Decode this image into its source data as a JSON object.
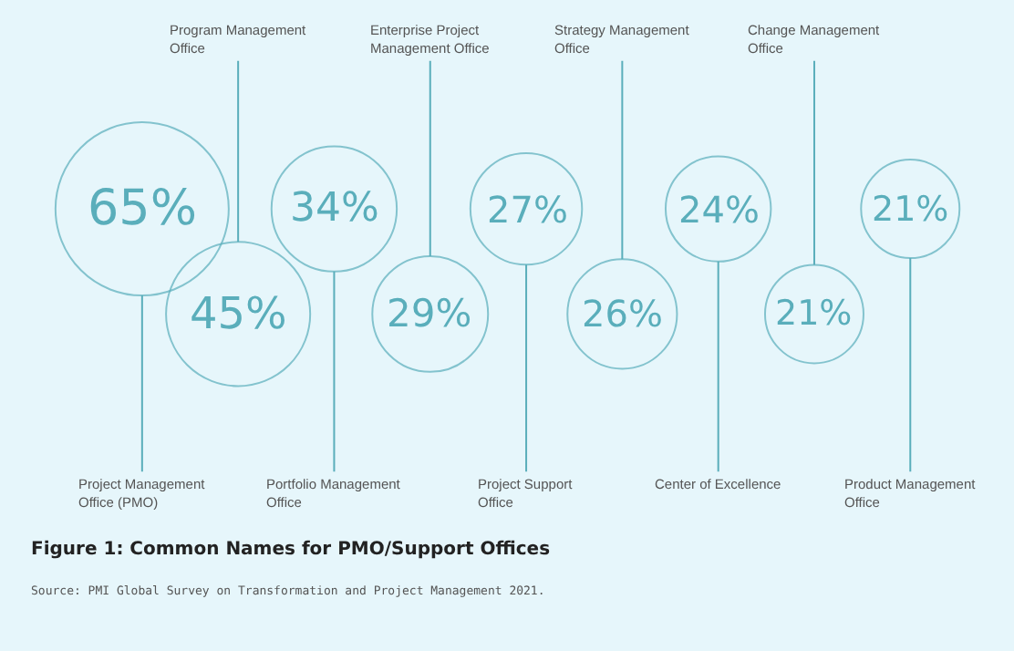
{
  "chart_data": {
    "type": "other",
    "title": "Figure 1: Common Names for PMO/Support Offices",
    "annotations": [
      "Source: PMI Global Survey on Transformation and Project Management 2021."
    ],
    "categories": [
      "Project Management Office (PMO)",
      "Program Management Office",
      "Portfolio Management Office",
      "Enterprise Project Management Office",
      "Project Support Office",
      "Strategy Management Office",
      "Center of Excellence",
      "Change Management Office",
      "Product Management Office"
    ],
    "values": [
      65,
      45,
      34,
      29,
      27,
      26,
      24,
      21,
      21
    ],
    "value_labels": [
      "65%",
      "45%",
      "34%",
      "29%",
      "27%",
      "26%",
      "24%",
      "21%",
      "21%"
    ],
    "color": "#5aaebb"
  }
}
